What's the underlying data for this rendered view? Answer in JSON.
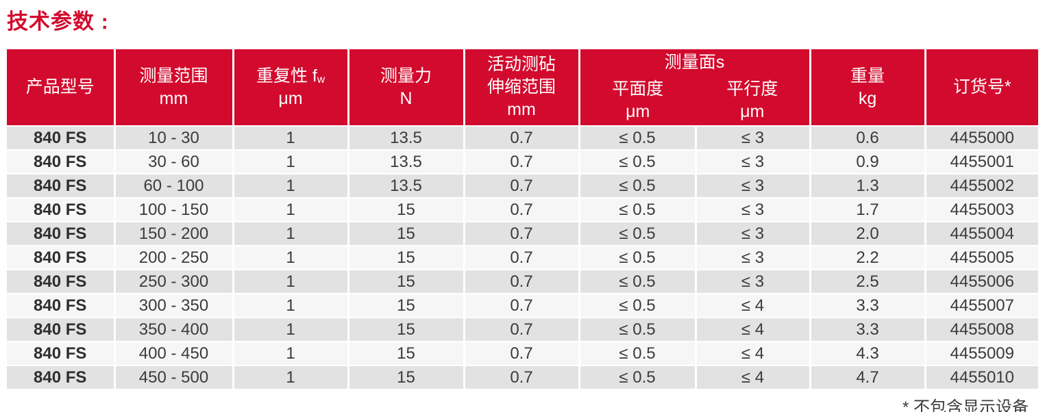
{
  "page": {
    "title": "技术参数 :",
    "footnote": "* 不包含显示设备"
  },
  "colors": {
    "header_bg": "#D20A2D",
    "header_text": "#FFFFFF",
    "row_odd_bg": "#E3E2E2",
    "row_even_bg": "#F7F6F6",
    "body_text": "#3B3B3B",
    "title_text": "#D20A2D"
  },
  "table": {
    "column_keys": [
      "model",
      "range",
      "repeatability",
      "force",
      "anvil-travel",
      "flatness",
      "parallelism",
      "weight",
      "order-no"
    ],
    "headers": {
      "model": "产品型号",
      "range": "测量范围\nmm",
      "repeatability": {
        "main": "重复性 f",
        "sub": "w",
        "unit": "μm"
      },
      "force": "测量力\nN",
      "anvil_travel": "活动测砧\n伸缩范围\nmm",
      "faces_group": "测量面s",
      "flatness": "平面度\nμm",
      "parallelism": "平行度\nμm",
      "weight": "重量\nkg",
      "order_no": "订货号*"
    },
    "rows": [
      [
        "840 FS",
        "10 - 30",
        "1",
        "13.5",
        "0.7",
        "≤ 0.5",
        "≤ 3",
        "0.6",
        "4455000"
      ],
      [
        "840 FS",
        "30 - 60",
        "1",
        "13.5",
        "0.7",
        "≤ 0.5",
        "≤ 3",
        "0.9",
        "4455001"
      ],
      [
        "840 FS",
        "60 - 100",
        "1",
        "13.5",
        "0.7",
        "≤ 0.5",
        "≤ 3",
        "1.3",
        "4455002"
      ],
      [
        "840 FS",
        "100 - 150",
        "1",
        "15",
        "0.7",
        "≤ 0.5",
        "≤ 3",
        "1.7",
        "4455003"
      ],
      [
        "840 FS",
        "150 - 200",
        "1",
        "15",
        "0.7",
        "≤ 0.5",
        "≤ 3",
        "2.0",
        "4455004"
      ],
      [
        "840 FS",
        "200 - 250",
        "1",
        "15",
        "0.7",
        "≤ 0.5",
        "≤ 3",
        "2.2",
        "4455005"
      ],
      [
        "840 FS",
        "250 - 300",
        "1",
        "15",
        "0.7",
        "≤ 0.5",
        "≤ 3",
        "2.5",
        "4455006"
      ],
      [
        "840 FS",
        "300 - 350",
        "1",
        "15",
        "0.7",
        "≤ 0.5",
        "≤ 4",
        "3.3",
        "4455007"
      ],
      [
        "840 FS",
        "350 - 400",
        "1",
        "15",
        "0.7",
        "≤ 0.5",
        "≤ 4",
        "3.3",
        "4455008"
      ],
      [
        "840 FS",
        "400 - 450",
        "1",
        "15",
        "0.7",
        "≤ 0.5",
        "≤ 4",
        "4.3",
        "4455009"
      ],
      [
        "840 FS",
        "450 - 500",
        "1",
        "15",
        "0.7",
        "≤ 0.5",
        "≤ 4",
        "4.7",
        "4455010"
      ]
    ]
  }
}
